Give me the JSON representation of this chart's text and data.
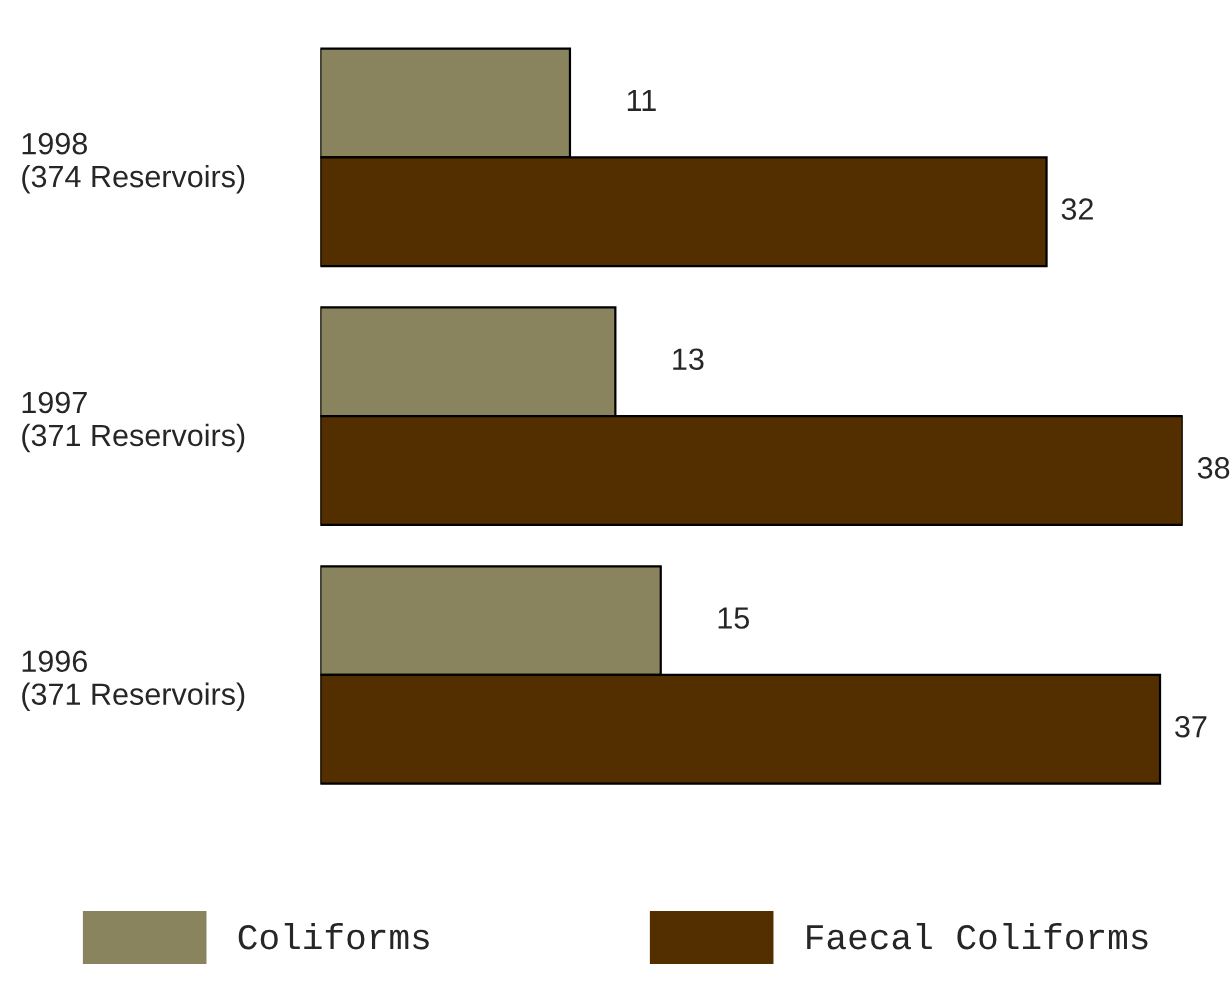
{
  "chart_data": {
    "type": "bar",
    "orientation": "horizontal",
    "categories": [
      "1998\n(374 Reservoirs)",
      "1997\n(371 Reservoirs)",
      "1996\n(371 Reservoirs)"
    ],
    "series": [
      {
        "name": "Coliforms",
        "color": "#8a845e",
        "values": [
          11,
          13,
          15
        ]
      },
      {
        "name": "Faecal Coliforms",
        "color": "#532f00",
        "values": [
          32,
          38,
          37
        ]
      }
    ],
    "data_labels": true,
    "legend": "bottom",
    "grid": false
  }
}
